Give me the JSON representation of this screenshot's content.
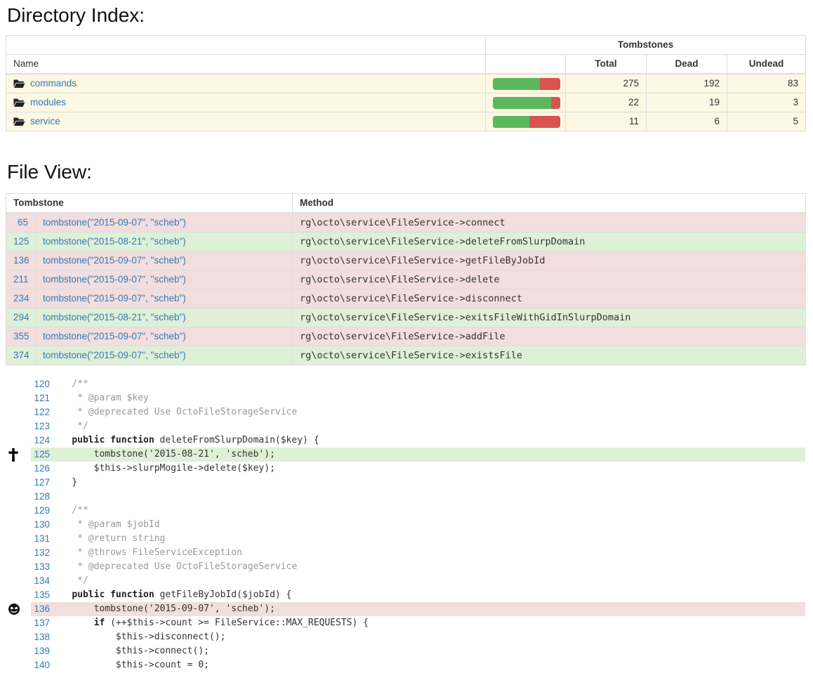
{
  "headings": {
    "directory_index": "Directory Index:",
    "file_view": "File View:"
  },
  "colors": {
    "link_blue": "#337ab7",
    "dead_green_bar": "#5cb85c",
    "undead_red_bar": "#d9534f",
    "row_warning_bg": "#fcf8e3",
    "row_dead_bg": "#dff0d8",
    "row_undead_bg": "#f2dede",
    "border": "#ddd",
    "comment_gray": "#999"
  },
  "directory_table": {
    "group_header": "Tombstones",
    "name_header": "Name",
    "columns": [
      "Total",
      "Dead",
      "Undead"
    ],
    "rows": [
      {
        "name": "commands",
        "total": 275,
        "dead": 192,
        "undead": 83
      },
      {
        "name": "modules",
        "total": 22,
        "dead": 19,
        "undead": 3
      },
      {
        "name": "service",
        "total": 11,
        "dead": 6,
        "undead": 5
      }
    ]
  },
  "file_view_table": {
    "columns": {
      "tombstone": "Tombstone",
      "method": "Method"
    },
    "rows": [
      {
        "line": 65,
        "call": "tombstone(\"2015-09-07\", \"scheb\")",
        "method": "rg\\octo\\service\\FileService->connect",
        "state": "undead"
      },
      {
        "line": 125,
        "call": "tombstone(\"2015-08-21\", \"scheb\")",
        "method": "rg\\octo\\service\\FileService->deleteFromSlurpDomain",
        "state": "dead"
      },
      {
        "line": 136,
        "call": "tombstone(\"2015-09-07\", \"scheb\")",
        "method": "rg\\octo\\service\\FileService->getFileByJobId",
        "state": "undead"
      },
      {
        "line": 211,
        "call": "tombstone(\"2015-09-07\", \"scheb\")",
        "method": "rg\\octo\\service\\FileService->delete",
        "state": "undead"
      },
      {
        "line": 234,
        "call": "tombstone(\"2015-09-07\", \"scheb\")",
        "method": "rg\\octo\\service\\FileService->disconnect",
        "state": "undead"
      },
      {
        "line": 294,
        "call": "tombstone(\"2015-08-21\", \"scheb\")",
        "method": "rg\\octo\\service\\FileService->exitsFileWithGidInSlurpDomain",
        "state": "dead"
      },
      {
        "line": 355,
        "call": "tombstone(\"2015-09-07\", \"scheb\")",
        "method": "rg\\octo\\service\\FileService->addFile",
        "state": "undead"
      },
      {
        "line": 374,
        "call": "tombstone(\"2015-09-07\", \"scheb\")",
        "method": "rg\\octo\\service\\FileService->existsFile",
        "state": "dead"
      }
    ]
  },
  "code_view": {
    "lines": [
      {
        "no": 120,
        "icon": null,
        "highlight": null,
        "segments": [
          {
            "style": "comment",
            "text": "    /**"
          }
        ]
      },
      {
        "no": 121,
        "icon": null,
        "highlight": null,
        "segments": [
          {
            "style": "comment",
            "text": "     * @param $key"
          }
        ]
      },
      {
        "no": 122,
        "icon": null,
        "highlight": null,
        "segments": [
          {
            "style": "comment",
            "text": "     * @deprecated Use OctoFileStorageService"
          }
        ]
      },
      {
        "no": 123,
        "icon": null,
        "highlight": null,
        "segments": [
          {
            "style": "comment",
            "text": "     */"
          }
        ]
      },
      {
        "no": 124,
        "icon": null,
        "highlight": null,
        "segments": [
          {
            "style": "plain",
            "text": "    "
          },
          {
            "style": "keyword",
            "text": "public function"
          },
          {
            "style": "plain",
            "text": " deleteFromSlurpDomain($key) {"
          }
        ]
      },
      {
        "no": 125,
        "icon": "cross",
        "highlight": "dead",
        "segments": [
          {
            "style": "plain",
            "text": "        tombstone('2015-08-21', 'scheb');"
          }
        ]
      },
      {
        "no": 126,
        "icon": null,
        "highlight": null,
        "segments": [
          {
            "style": "plain",
            "text": "        $this->slurpMogile->delete($key);"
          }
        ]
      },
      {
        "no": 127,
        "icon": null,
        "highlight": null,
        "segments": [
          {
            "style": "plain",
            "text": "    }"
          }
        ]
      },
      {
        "no": 128,
        "icon": null,
        "highlight": null,
        "segments": []
      },
      {
        "no": 129,
        "icon": null,
        "highlight": null,
        "segments": [
          {
            "style": "comment",
            "text": "    /**"
          }
        ]
      },
      {
        "no": 130,
        "icon": null,
        "highlight": null,
        "segments": [
          {
            "style": "comment",
            "text": "     * @param $jobId"
          }
        ]
      },
      {
        "no": 131,
        "icon": null,
        "highlight": null,
        "segments": [
          {
            "style": "comment",
            "text": "     * @return string"
          }
        ]
      },
      {
        "no": 132,
        "icon": null,
        "highlight": null,
        "segments": [
          {
            "style": "comment",
            "text": "     * @throws FileServiceException"
          }
        ]
      },
      {
        "no": 133,
        "icon": null,
        "highlight": null,
        "segments": [
          {
            "style": "comment",
            "text": "     * @deprecated Use OctoFileStorageService"
          }
        ]
      },
      {
        "no": 134,
        "icon": null,
        "highlight": null,
        "segments": [
          {
            "style": "comment",
            "text": "     */"
          }
        ]
      },
      {
        "no": 135,
        "icon": null,
        "highlight": null,
        "segments": [
          {
            "style": "plain",
            "text": "    "
          },
          {
            "style": "keyword",
            "text": "public function"
          },
          {
            "style": "plain",
            "text": " getFileByJobId($jobId) {"
          }
        ]
      },
      {
        "no": 136,
        "icon": "vampire",
        "highlight": "undead",
        "segments": [
          {
            "style": "plain",
            "text": "        tombstone('2015-09-07', 'scheb');"
          }
        ]
      },
      {
        "no": 137,
        "icon": null,
        "highlight": null,
        "segments": [
          {
            "style": "plain",
            "text": "        "
          },
          {
            "style": "keyword",
            "text": "if"
          },
          {
            "style": "plain",
            "text": " (++$this->count >= FileService::MAX_REQUESTS) {"
          }
        ]
      },
      {
        "no": 138,
        "icon": null,
        "highlight": null,
        "segments": [
          {
            "style": "plain",
            "text": "            $this->disconnect();"
          }
        ]
      },
      {
        "no": 139,
        "icon": null,
        "highlight": null,
        "segments": [
          {
            "style": "plain",
            "text": "            $this->connect();"
          }
        ]
      },
      {
        "no": 140,
        "icon": null,
        "highlight": null,
        "segments": [
          {
            "style": "plain",
            "text": "            $this->count = 0;"
          }
        ]
      }
    ]
  }
}
